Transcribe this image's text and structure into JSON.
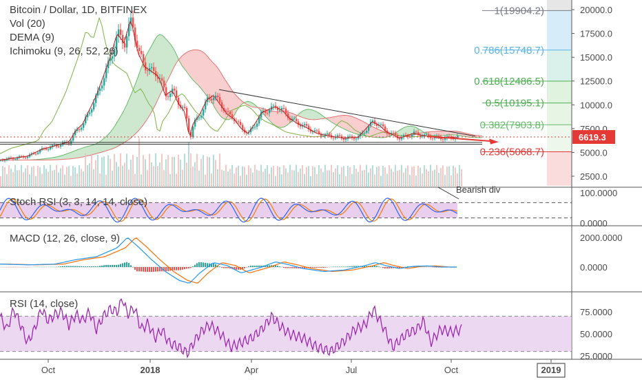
{
  "header": {
    "title": "Bitcoin / Dollar, 1D, BITFINEX",
    "indicators": [
      "Vol (20)",
      "DEMA (9)",
      "Ichimoku (9, 26, 52, 26)"
    ]
  },
  "panes": {
    "stoch_label": "Stoch RSI (3, 3, 14, 14, close)",
    "macd_label": "MACD (12, 26, close, 9)",
    "rsi_label": "RSI (14, close)"
  },
  "annotation": {
    "bearish_div": "Bearish div"
  },
  "colors": {
    "candle_up": "#26a69a",
    "candle_down": "#ef5350",
    "cloud_up": "#a5d6a7",
    "cloud_down": "#f4a6a6",
    "stoch_k": "#2962ff",
    "stoch_d": "#f57c00",
    "rsi": "#9c27b0",
    "band": "#e1bee7",
    "fib_1": "#787b86",
    "fib_0786": "#5ab5e6",
    "fib_0618": "#4caf50",
    "fib_05": "#4caf50",
    "fib_0382": "#66bb6a",
    "fib_0236": "#e53935",
    "price_tag": "#e53935",
    "trendline": "#333333"
  },
  "chart_data": [
    {
      "type": "candlestick",
      "title": "Bitcoin / Dollar, 1D, BITFINEX",
      "x_ticks": [
        "Oct",
        "2018",
        "Apr",
        "Jul",
        "Oct",
        "2019"
      ],
      "y_ticks": [
        "20000.0",
        "17500.0",
        "15000.0",
        "12500.0",
        "10000.0",
        "7500.0",
        "5000.0",
        "2500.0"
      ],
      "y_range": [
        1500,
        21000
      ],
      "last_price": "6619.3",
      "fib_levels": [
        {
          "label": "1(19904.2)",
          "value": 19904.2
        },
        {
          "label": "0.786(15748.7)",
          "value": 15748.7
        },
        {
          "label": "0.618(12486.5)",
          "value": 12486.5
        },
        {
          "label": "0.5(10195.1)",
          "value": 10195.1
        },
        {
          "label": "0.382(7903.8)",
          "value": 7903.8
        },
        {
          "label": "0.236(5068.7)",
          "value": 5068.7
        }
      ],
      "price_path": [
        [
          0,
          4200
        ],
        [
          20,
          4400
        ],
        [
          40,
          4600
        ],
        [
          60,
          5300
        ],
        [
          80,
          5700
        ],
        [
          100,
          6100
        ],
        [
          110,
          7300
        ],
        [
          120,
          8000
        ],
        [
          130,
          9500
        ],
        [
          140,
          11000
        ],
        [
          150,
          13000
        ],
        [
          160,
          15000
        ],
        [
          170,
          17500
        ],
        [
          180,
          16500
        ],
        [
          190,
          19000
        ],
        [
          200,
          15500
        ],
        [
          210,
          14000
        ],
        [
          220,
          13500
        ],
        [
          230,
          13000
        ],
        [
          240,
          11000
        ],
        [
          250,
          11500
        ],
        [
          260,
          10000
        ],
        [
          268,
          9300
        ],
        [
          275,
          6500
        ],
        [
          280,
          8000
        ],
        [
          290,
          9000
        ],
        [
          300,
          10500
        ],
        [
          310,
          11000
        ],
        [
          320,
          10000
        ],
        [
          330,
          9000
        ],
        [
          340,
          8500
        ],
        [
          350,
          7500
        ],
        [
          360,
          7000
        ],
        [
          370,
          8000
        ],
        [
          380,
          9200
        ],
        [
          390,
          9500
        ],
        [
          400,
          9800
        ],
        [
          410,
          9400
        ],
        [
          420,
          8600
        ],
        [
          430,
          8100
        ],
        [
          440,
          7800
        ],
        [
          460,
          7000
        ],
        [
          480,
          6700
        ],
        [
          500,
          6500
        ],
        [
          520,
          6600
        ],
        [
          540,
          8200
        ],
        [
          550,
          7900
        ],
        [
          560,
          7200
        ],
        [
          580,
          6500
        ],
        [
          600,
          7000
        ],
        [
          620,
          6700
        ],
        [
          640,
          6500
        ],
        [
          660,
          6600
        ]
      ],
      "volume_note": "volume bars along bottom of price pane"
    },
    {
      "type": "line",
      "title": "Stoch RSI (3, 3, 14, 14, close)",
      "y_ticks": [
        "100.0000",
        "0.0000"
      ],
      "y_range": [
        0,
        100
      ],
      "band": [
        20,
        80
      ]
    },
    {
      "type": "line",
      "title": "MACD (12, 26, close, 9)",
      "y_ticks": [
        "2000.0000",
        "0.0000"
      ],
      "y_range": [
        -1200,
        2400
      ],
      "macd": [
        [
          0,
          200
        ],
        [
          40,
          150
        ],
        [
          80,
          200
        ],
        [
          110,
          500
        ],
        [
          140,
          700
        ],
        [
          170,
          1300
        ],
        [
          185,
          2000
        ],
        [
          200,
          1400
        ],
        [
          220,
          500
        ],
        [
          240,
          -300
        ],
        [
          260,
          -900
        ],
        [
          275,
          -1100
        ],
        [
          290,
          -400
        ],
        [
          310,
          300
        ],
        [
          330,
          100
        ],
        [
          350,
          -400
        ],
        [
          380,
          0
        ],
        [
          400,
          350
        ],
        [
          420,
          150
        ],
        [
          440,
          -100
        ],
        [
          470,
          -300
        ],
        [
          500,
          -200
        ],
        [
          530,
          100
        ],
        [
          545,
          300
        ],
        [
          560,
          100
        ],
        [
          580,
          -100
        ],
        [
          600,
          50
        ],
        [
          620,
          80
        ],
        [
          640,
          0
        ],
        [
          660,
          0
        ]
      ]
    },
    {
      "type": "line",
      "title": "RSI (14, close)",
      "y_ticks": [
        "75.0000",
        "50.0000",
        "25.0000"
      ],
      "y_range": [
        20,
        95
      ],
      "band": [
        30,
        70
      ],
      "rsi": [
        [
          0,
          70
        ],
        [
          10,
          55
        ],
        [
          20,
          78
        ],
        [
          30,
          60
        ],
        [
          40,
          40
        ],
        [
          50,
          55
        ],
        [
          60,
          78
        ],
        [
          70,
          65
        ],
        [
          80,
          72
        ],
        [
          90,
          75
        ],
        [
          100,
          60
        ],
        [
          110,
          72
        ],
        [
          120,
          65
        ],
        [
          130,
          75
        ],
        [
          140,
          55
        ],
        [
          150,
          70
        ],
        [
          160,
          78
        ],
        [
          170,
          75
        ],
        [
          178,
          90
        ],
        [
          185,
          72
        ],
        [
          195,
          80
        ],
        [
          205,
          55
        ],
        [
          215,
          62
        ],
        [
          225,
          45
        ],
        [
          235,
          55
        ],
        [
          245,
          40
        ],
        [
          260,
          35
        ],
        [
          272,
          28
        ],
        [
          285,
          45
        ],
        [
          295,
          55
        ],
        [
          305,
          60
        ],
        [
          320,
          50
        ],
        [
          335,
          35
        ],
        [
          350,
          40
        ],
        [
          365,
          45
        ],
        [
          380,
          55
        ],
        [
          395,
          70
        ],
        [
          405,
          60
        ],
        [
          420,
          50
        ],
        [
          440,
          45
        ],
        [
          460,
          35
        ],
        [
          480,
          30
        ],
        [
          500,
          42
        ],
        [
          515,
          55
        ],
        [
          530,
          60
        ],
        [
          542,
          78
        ],
        [
          555,
          60
        ],
        [
          570,
          35
        ],
        [
          590,
          50
        ],
        [
          605,
          55
        ],
        [
          615,
          65
        ],
        [
          625,
          40
        ],
        [
          640,
          55
        ],
        [
          655,
          52
        ],
        [
          670,
          55
        ]
      ]
    }
  ]
}
